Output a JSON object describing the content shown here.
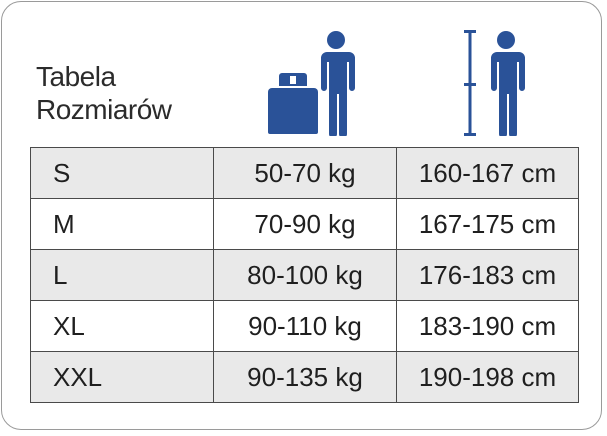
{
  "title": {
    "line1": "Tabela",
    "line2": "Rozmiarów"
  },
  "icons": {
    "weight": "weight-person-icon",
    "height": "height-person-icon",
    "color": "#2a5298"
  },
  "rows": [
    {
      "size": "S",
      "weight": "50-70 kg",
      "height": "160-167 cm"
    },
    {
      "size": "M",
      "weight": "70-90 kg",
      "height": "167-175 cm"
    },
    {
      "size": "L",
      "weight": "80-100 kg",
      "height": "176-183 cm"
    },
    {
      "size": "XL",
      "weight": "90-110 kg",
      "height": "183-190 cm"
    },
    {
      "size": "XXL",
      "weight": "90-135 kg",
      "height": "190-198 cm"
    }
  ]
}
